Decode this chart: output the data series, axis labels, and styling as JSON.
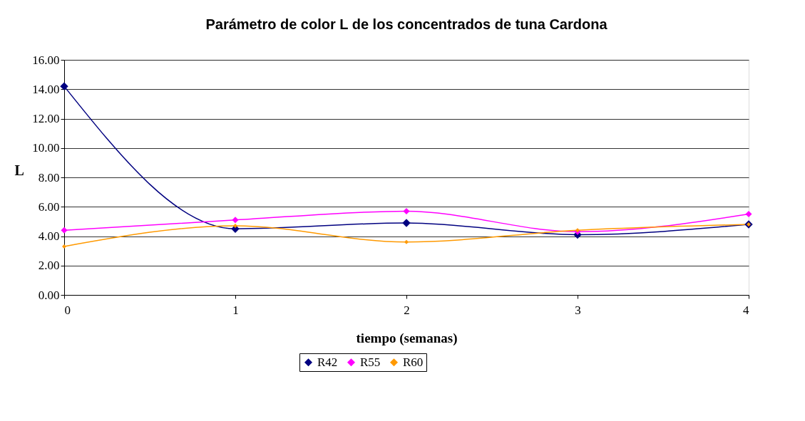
{
  "chart_data": {
    "type": "line",
    "title": "Parámetro de color L de los concentrados de tuna Cardona",
    "xlabel": "tiempo (semanas)",
    "ylabel": "L",
    "x": [
      0,
      1,
      2,
      3,
      4
    ],
    "series": [
      {
        "name": "R42",
        "color": "#000080",
        "values": [
          14.2,
          4.5,
          4.9,
          4.1,
          4.8
        ]
      },
      {
        "name": "R55",
        "color": "#ff00ff",
        "values": [
          4.4,
          5.1,
          5.7,
          4.3,
          5.5
        ]
      },
      {
        "name": "R60",
        "color": "#ff9900",
        "values": [
          3.3,
          4.7,
          3.6,
          4.4,
          4.8
        ]
      }
    ],
    "xlim": [
      0,
      4
    ],
    "xticks": [
      0,
      1,
      2,
      3,
      4
    ],
    "ylim": [
      0,
      16
    ],
    "yticks": [
      {
        "value": 0,
        "label": "0.00"
      },
      {
        "value": 2,
        "label": "2.00"
      },
      {
        "value": 4,
        "label": "4.00"
      },
      {
        "value": 6,
        "label": "6.00"
      },
      {
        "value": 8,
        "label": "8.00"
      },
      {
        "value": 10,
        "label": "10.00"
      },
      {
        "value": 12,
        "label": "12.00"
      },
      {
        "value": 14,
        "label": "14.00"
      },
      {
        "value": 16,
        "label": "16.00"
      }
    ],
    "grid": "y",
    "legend": "bottom",
    "marker": "diamond",
    "line_style": "solid"
  }
}
